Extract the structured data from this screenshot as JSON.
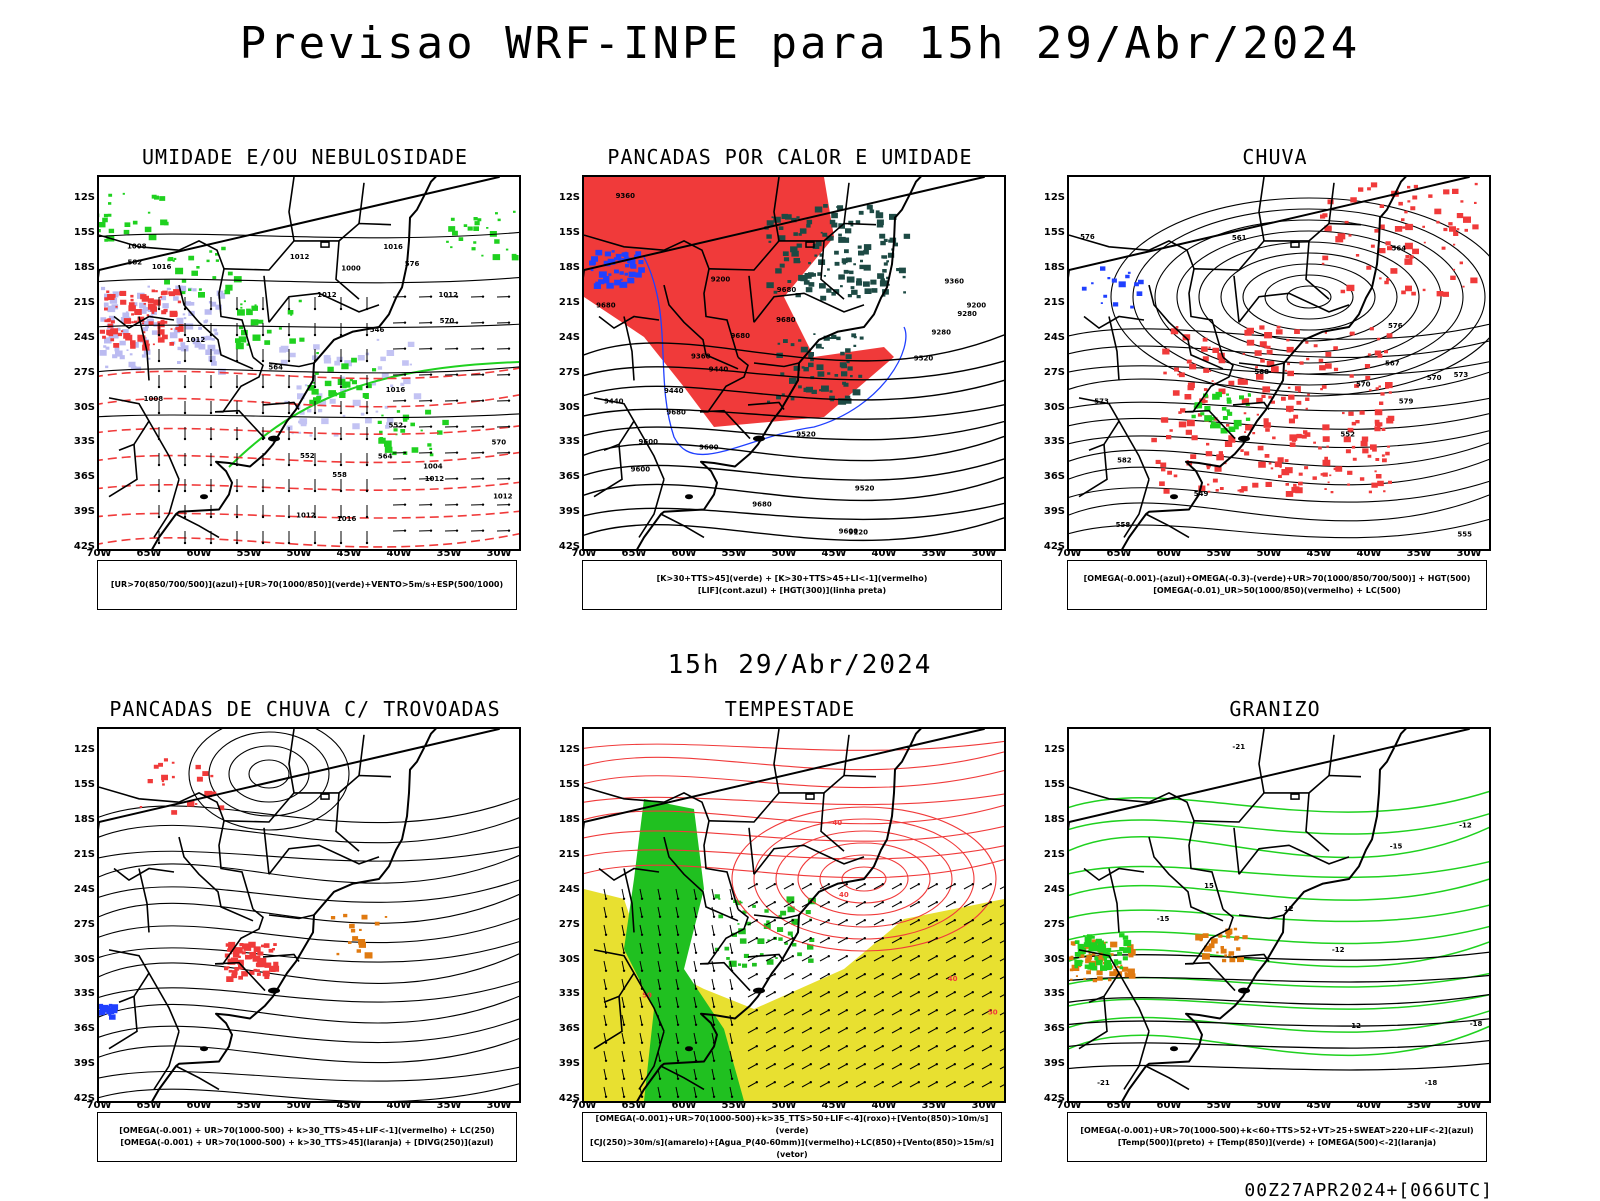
{
  "title": "Previsao WRF-INPE  para 15h 29/Abr/2024",
  "mid_title": "15h 29/Abr/2024",
  "footer": "00Z27APR2024+[066UTC]",
  "lat_labels": [
    "12S",
    "15S",
    "18S",
    "21S",
    "24S",
    "27S",
    "30S",
    "33S",
    "36S",
    "39S",
    "42S"
  ],
  "lon_labels": [
    "70W",
    "65W",
    "60W",
    "55W",
    "50W",
    "45W",
    "40W",
    "35W",
    "30W"
  ],
  "colors": {
    "red": "#f03a3a",
    "green": "#1fd11f",
    "blue": "#2040ff",
    "lavender": "#b4b4f0",
    "darkgreen": "#1d4a44",
    "yellow": "#e8e030",
    "orange": "#e07a10",
    "black": "#000000"
  },
  "panels": [
    {
      "title": "UMIDADE E/OU NEBULOSIDADE",
      "legend": [
        "[UR>70(850/700/500)](azul)+[UR>70(1000/850)](verde)+VENTO>5m/s+ESP(500/1000)"
      ],
      "contour_labels": [
        "1012",
        "1012",
        "1008",
        "1012",
        "1012",
        "1012",
        "1016",
        "1016",
        "1012",
        "1008",
        "1004",
        "1000",
        "1016",
        "1016",
        "1012",
        "576",
        "570",
        "564",
        "558",
        "552",
        "582",
        "552",
        "546",
        "564",
        "570"
      ]
    },
    {
      "title": "PANCADAS POR CALOR E UMIDADE",
      "legend": [
        "[K>30+TTS>45](verde) + [K>30+TTS>45+LI<-1](vermelho)",
        "[LIF](cont.azul) + [HGT(300)](linha preta)"
      ],
      "contour_labels": [
        "9680",
        "9680",
        "9680",
        "9680",
        "9600",
        "9680",
        "9680",
        "9600",
        "9520",
        "9440",
        "9600",
        "9360",
        "9520",
        "9440",
        "9280",
        "9360",
        "9120",
        "9200",
        "9600",
        "9520",
        "9440",
        "9360",
        "9280",
        "9200"
      ]
    },
    {
      "title": "CHUVA",
      "legend": [
        "[OMEGA(-0.001)-(azul)+OMEGA(-0.3)-(verde)+UR>70(1000/850/700/500)] + HGT(500)",
        "[OMEGA(-0.01)_UR>50(1000/850)(vermelho) + LC(500)"
      ],
      "contour_labels": [
        "588",
        "582",
        "579",
        "576",
        "573",
        "570",
        "567",
        "564",
        "561",
        "558",
        "555",
        "552",
        "549",
        "576",
        "573",
        "570"
      ]
    },
    {
      "title": "PANCADAS DE CHUVA C/ TROVOADAS",
      "legend": [
        "[OMEGA(-0.001) + UR>70(1000-500) + k>30_TTS>45+LIF<-1](vermelho) + LC(250)",
        "[OMEGA(-0.001) + UR>70(1000-500) + k>30_TTS>45](laranja) + [DIVG(250)](azul)"
      ],
      "contour_labels": []
    },
    {
      "title": "TEMPESTADE",
      "legend": [
        "[OMEGA(-0.001)+UR>70(1000-500)+k>35_TTS>50+LIF<-4](roxo)+[Vento(850)>10m/s](verde)",
        "[CJ(250)>30m/s](amarelo)+[Agua_P(40-60mm)](vermelho)+LC(850)+[Vento(850)>15m/s](vetor)"
      ],
      "contour_labels": [
        "50",
        "40",
        "40",
        "50",
        "40"
      ]
    },
    {
      "title": "GRANIZO",
      "legend": [
        "[OMEGA(-0.001)+UR>70(1000-500)+k<60+TTS>52+VT>25+SWEAT>220+LIF<-2](azul)",
        "[Temp(500)](preto) + [Temp(850)](verde) + [OMEGA(500)<-2](laranja)"
      ],
      "contour_labels": [
        "-12",
        "-12",
        "-15",
        "-18",
        "-21",
        "-21",
        "-18",
        "-15",
        "-12",
        "15",
        "12"
      ]
    }
  ]
}
